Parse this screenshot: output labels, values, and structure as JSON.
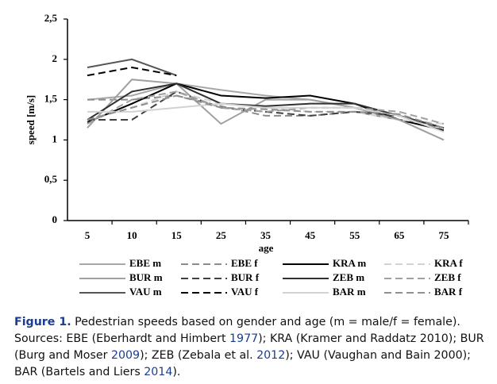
{
  "chart_data": {
    "type": "line",
    "ylabel": "speed [m/s]",
    "xlabel": "age",
    "categories": [
      "5",
      "10",
      "15",
      "25",
      "35",
      "45",
      "55",
      "65",
      "75"
    ],
    "ylim": [
      0,
      2.5
    ],
    "yticks": [
      0,
      {
        "value": 0.5,
        "label": "0,5"
      },
      1,
      {
        "value": 1.5,
        "label": "1,5"
      },
      2,
      {
        "value": 2.5,
        "label": "2,5"
      }
    ],
    "series": [
      {
        "name": "EBE m",
        "color": "#a8a8a8",
        "linestyle": "solid",
        "values": [
          1.5,
          1.55,
          1.7,
          1.62,
          1.55,
          1.5,
          1.4,
          1.25,
          1.0
        ]
      },
      {
        "name": "EBE f",
        "color": "#8c8c8c",
        "linestyle": "dashed",
        "values": [
          1.5,
          1.5,
          1.55,
          1.42,
          1.3,
          1.3,
          1.35,
          1.25,
          1.15
        ]
      },
      {
        "name": "KRA m",
        "color": "#000000",
        "linestyle": "solid",
        "values": [
          1.22,
          1.45,
          1.7,
          1.55,
          1.52,
          1.55,
          1.45,
          1.25,
          1.12
        ]
      },
      {
        "name": "KRA f",
        "color": "#d2d2d2",
        "linestyle": "dashed",
        "values": [
          1.25,
          1.4,
          1.6,
          1.45,
          1.4,
          1.35,
          1.35,
          1.25,
          1.2
        ]
      },
      {
        "name": "BUR m",
        "color": "#a0a0a0",
        "linestyle": "solid",
        "values": [
          1.15,
          1.75,
          1.7,
          1.2,
          1.5,
          1.5,
          1.4,
          1.25,
          1.0
        ]
      },
      {
        "name": "BUR f",
        "color": "#404040",
        "linestyle": "dashed",
        "values": [
          1.25,
          1.25,
          1.6,
          1.4,
          1.35,
          1.3,
          1.35,
          1.3,
          1.15
        ]
      },
      {
        "name": "ZEB m",
        "color": "#303030",
        "linestyle": "solid",
        "values": [
          1.25,
          1.6,
          1.7,
          1.45,
          1.42,
          1.45,
          1.45,
          1.3,
          1.15
        ]
      },
      {
        "name": "ZEB f",
        "color": "#a0a0a0",
        "linestyle": "dashed",
        "values": [
          1.2,
          1.5,
          1.6,
          1.4,
          1.35,
          1.4,
          1.4,
          1.35,
          1.2
        ]
      },
      {
        "name": "VAU m",
        "color": "#555555",
        "linestyle": "solid",
        "values": [
          1.9,
          2.0,
          1.8,
          null,
          null,
          null,
          null,
          null,
          null
        ]
      },
      {
        "name": "VAU f",
        "color": "#000000",
        "linestyle": "dashed",
        "values": [
          1.8,
          1.9,
          1.8,
          null,
          null,
          null,
          null,
          null,
          null
        ]
      },
      {
        "name": "BAR m",
        "color": "#d2d2d2",
        "linestyle": "solid",
        "values": [
          1.35,
          1.35,
          1.4,
          1.45,
          1.4,
          1.4,
          1.4,
          1.3,
          1.1
        ]
      },
      {
        "name": "BAR f",
        "color": "#909090",
        "linestyle": "dashed",
        "values": [
          1.25,
          1.4,
          1.55,
          1.4,
          1.38,
          1.35,
          1.35,
          1.32,
          1.15
        ]
      }
    ]
  },
  "caption": {
    "label": "Figure 1.",
    "parts": [
      " Pedestrian speeds based on gender and age (m = male/f = female). Sources: EBE (Eberhardt and Himbert ",
      "1977",
      "); KRA (Kramer and Raddatz 2010); BUR (Burg and Moser ",
      "2009",
      "); ZEB (Zebala et al. ",
      "2012",
      "); VAU (Vaughan and Bain 2000); BAR (Bartels and Liers ",
      "2014",
      ")."
    ]
  }
}
